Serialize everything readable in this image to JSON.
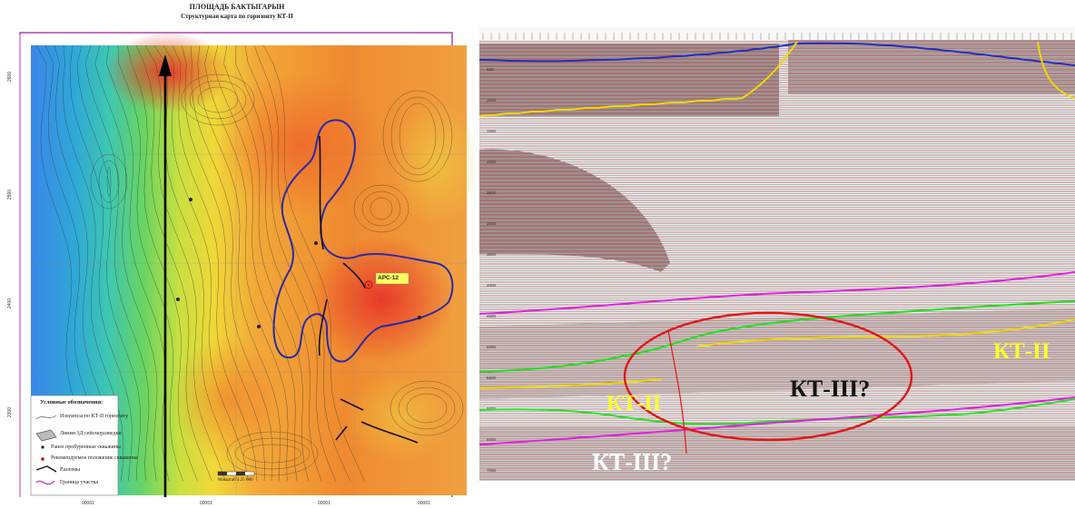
{
  "map": {
    "title": "ПЛОЩАДЬ БАКТЫГАРЫН",
    "subtitle": "Структурная карта по горизонту КТ-II",
    "well_label": "АРС-12",
    "legend": {
      "heading": "Условные обозначения:",
      "items": [
        "Изогипсы по КТ-II горизонту",
        "Линии 3Д сейсморазведки",
        "Ранее пробуренные скважины",
        "Рекомендуемое положение скважины",
        "Разломы",
        "Граница участка"
      ]
    },
    "scale_label": "Масштаб 1:25 000"
  },
  "section": {
    "labels": {
      "kt2_right": "КТ-II",
      "kt3_center": "КТ-III?",
      "kt2_left": "КТ-II",
      "kt3_bottom": "КТ-III?"
    }
  },
  "colors": {
    "map_blue": "#2f7fe0",
    "map_green": "#5ad05a",
    "map_yellow": "#f2e23a",
    "map_orange": "#f08a2a",
    "map_red": "#e8402a",
    "contour_blue": "#2a2aa8",
    "horizon_blue": "#2030c0",
    "horizon_yellow": "#f0d800",
    "horizon_magenta": "#e020e0",
    "horizon_green": "#20e020",
    "ellipse_red": "#e01818",
    "label_yellow": "#ffff30",
    "label_white": "#ffffff",
    "label_black": "#111111"
  }
}
